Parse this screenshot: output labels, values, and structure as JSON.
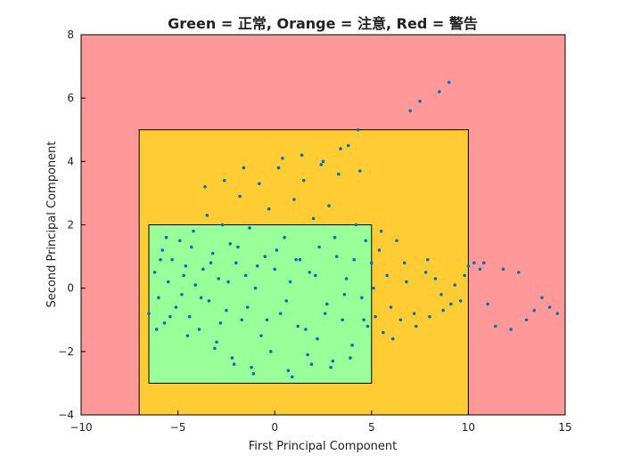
{
  "chart_data": {
    "type": "scatter",
    "title": "Green = 正常, Orange = 注意, Red = 警告",
    "xlabel": "First Principal Component",
    "ylabel": "Second Principal Component",
    "xlim": [
      -10,
      15
    ],
    "ylim": [
      -4,
      8
    ],
    "xticks": [
      -10,
      -5,
      0,
      5,
      10,
      15
    ],
    "yticks": [
      -4,
      -2,
      0,
      2,
      4,
      6,
      8
    ],
    "xtick_labels": [
      "−10",
      "−5",
      "0",
      "5",
      "10",
      "15"
    ],
    "ytick_labels": [
      "−4",
      "−2",
      "0",
      "2",
      "4",
      "6",
      "8"
    ],
    "grid": false,
    "regions": [
      {
        "name": "警告",
        "color": "#FF9999",
        "x": [
          -10,
          15
        ],
        "y": [
          -4,
          8
        ]
      },
      {
        "name": "注意",
        "color": "#FFCC33",
        "x": [
          -7,
          10
        ],
        "y": [
          -4,
          5
        ]
      },
      {
        "name": "正常",
        "color": "#99FF99",
        "x": [
          -6.5,
          5
        ],
        "y": [
          -3,
          2
        ]
      }
    ],
    "series": [
      {
        "color": "#0072BD",
        "points": [
          [
            -6.5,
            -0.8
          ],
          [
            -6.2,
            0.5
          ],
          [
            -6.0,
            -0.3
          ],
          [
            -5.8,
            1.2
          ],
          [
            -5.7,
            -1.1
          ],
          [
            -5.5,
            0.2
          ],
          [
            -5.3,
            0.9
          ],
          [
            -5.1,
            -0.6
          ],
          [
            -4.9,
            1.5
          ],
          [
            -4.8,
            -0.2
          ],
          [
            -4.6,
            0.7
          ],
          [
            -4.4,
            -0.9
          ],
          [
            -4.2,
            1.8
          ],
          [
            -4.1,
            0.1
          ],
          [
            -3.9,
            -1.3
          ],
          [
            -3.7,
            0.6
          ],
          [
            -3.5,
            2.3
          ],
          [
            -3.4,
            -0.4
          ],
          [
            -3.2,
            1.1
          ],
          [
            -3.0,
            -1.7
          ],
          [
            -2.9,
            0.3
          ],
          [
            -2.7,
            2.0
          ],
          [
            -2.5,
            -0.7
          ],
          [
            -2.3,
            1.4
          ],
          [
            -2.2,
            -2.2
          ],
          [
            -2.0,
            0.8
          ],
          [
            -1.8,
            2.9
          ],
          [
            -1.7,
            -1.0
          ],
          [
            -1.5,
            0.4
          ],
          [
            -1.3,
            1.9
          ],
          [
            -1.2,
            -2.5
          ],
          [
            -1.0,
            0.0
          ],
          [
            -0.8,
            3.3
          ],
          [
            -0.7,
            -1.5
          ],
          [
            -0.5,
            1.0
          ],
          [
            -0.3,
            2.5
          ],
          [
            -0.2,
            -2.0
          ],
          [
            0.0,
            0.6
          ],
          [
            0.2,
            3.8
          ],
          [
            0.3,
            -0.8
          ],
          [
            0.5,
            1.6
          ],
          [
            0.7,
            -2.6
          ],
          [
            0.8,
            0.2
          ],
          [
            1.0,
            2.8
          ],
          [
            1.2,
            -1.2
          ],
          [
            1.3,
            0.9
          ],
          [
            1.5,
            3.4
          ],
          [
            1.7,
            -2.1
          ],
          [
            1.8,
            0.5
          ],
          [
            2.0,
            2.2
          ],
          [
            2.2,
            -1.6
          ],
          [
            2.3,
            1.3
          ],
          [
            2.5,
            4.0
          ],
          [
            2.7,
            -0.5
          ],
          [
            2.8,
            2.6
          ],
          [
            3.0,
            -2.3
          ],
          [
            3.2,
            1.0
          ],
          [
            3.3,
            3.6
          ],
          [
            3.5,
            -1.0
          ],
          [
            3.7,
            0.3
          ],
          [
            3.8,
            4.5
          ],
          [
            4.0,
            -1.8
          ],
          [
            4.2,
            2.0
          ],
          [
            4.3,
            5.0
          ],
          [
            4.5,
            -0.3
          ],
          [
            4.7,
            1.5
          ],
          [
            4.8,
            -1.2
          ],
          [
            5.0,
            0.8
          ],
          [
            5.2,
            -0.9
          ],
          [
            5.4,
            1.2
          ],
          [
            5.6,
            -1.4
          ],
          [
            5.8,
            0.4
          ],
          [
            6.0,
            -0.6
          ],
          [
            6.3,
            1.5
          ],
          [
            6.5,
            -1.0
          ],
          [
            6.8,
            0.2
          ],
          [
            7.0,
            5.6
          ],
          [
            7.2,
            -0.8
          ],
          [
            7.5,
            5.9
          ],
          [
            7.8,
            0.5
          ],
          [
            8.0,
            -0.9
          ],
          [
            8.3,
            0.3
          ],
          [
            8.5,
            6.2
          ],
          [
            8.7,
            -0.7
          ],
          [
            9.0,
            6.5
          ],
          [
            9.3,
            0.1
          ],
          [
            9.6,
            -0.4
          ],
          [
            10.0,
            0.7
          ],
          [
            10.3,
            0.8
          ],
          [
            10.6,
            0.6
          ],
          [
            11.0,
            -0.5
          ],
          [
            11.4,
            -1.2
          ],
          [
            11.8,
            0.6
          ],
          [
            12.2,
            -1.3
          ],
          [
            12.6,
            0.5
          ],
          [
            13.0,
            -1.0
          ],
          [
            13.4,
            -0.7
          ],
          [
            13.8,
            -0.3
          ],
          [
            14.2,
            -0.6
          ],
          [
            14.6,
            -0.8
          ],
          [
            -5.9,
            0.9
          ],
          [
            -5.4,
            -0.9
          ],
          [
            -4.7,
            0.4
          ],
          [
            -4.3,
            1.3
          ],
          [
            -3.8,
            -0.3
          ],
          [
            -3.3,
            0.8
          ],
          [
            -2.8,
            -1.1
          ],
          [
            -2.4,
            0.2
          ],
          [
            -1.9,
            1.3
          ],
          [
            -1.4,
            -0.6
          ],
          [
            -0.9,
            0.7
          ],
          [
            -0.4,
            -1.0
          ],
          [
            0.1,
            1.2
          ],
          [
            0.6,
            -0.4
          ],
          [
            1.1,
            0.9
          ],
          [
            1.6,
            -1.3
          ],
          [
            2.1,
            0.4
          ],
          [
            2.6,
            -0.8
          ],
          [
            3.1,
            1.6
          ],
          [
            3.6,
            -0.2
          ],
          [
            4.1,
            0.9
          ],
          [
            4.6,
            -1.0
          ],
          [
            -3.6,
            3.2
          ],
          [
            -2.6,
            3.4
          ],
          [
            -1.6,
            3.8
          ],
          [
            0.4,
            4.1
          ],
          [
            1.4,
            4.2
          ],
          [
            2.4,
            3.9
          ],
          [
            3.4,
            4.4
          ],
          [
            4.4,
            3.7
          ],
          [
            -6.1,
            -1.3
          ],
          [
            -5.6,
            1.6
          ],
          [
            -4.5,
            -1.5
          ],
          [
            -3.1,
            -1.9
          ],
          [
            -2.1,
            -2.4
          ],
          [
            -1.1,
            -2.7
          ],
          [
            0.9,
            -2.8
          ],
          [
            1.9,
            -2.4
          ],
          [
            2.9,
            -2.5
          ],
          [
            3.9,
            -2.2
          ],
          [
            5.1,
            0.0
          ],
          [
            5.5,
            1.8
          ],
          [
            6.1,
            -1.6
          ],
          [
            6.7,
            0.8
          ],
          [
            7.3,
            -1.2
          ],
          [
            7.9,
            0.9
          ],
          [
            8.6,
            -0.2
          ],
          [
            9.1,
            -0.5
          ],
          [
            9.8,
            0.4
          ],
          [
            10.8,
            0.8
          ]
        ]
      }
    ]
  }
}
